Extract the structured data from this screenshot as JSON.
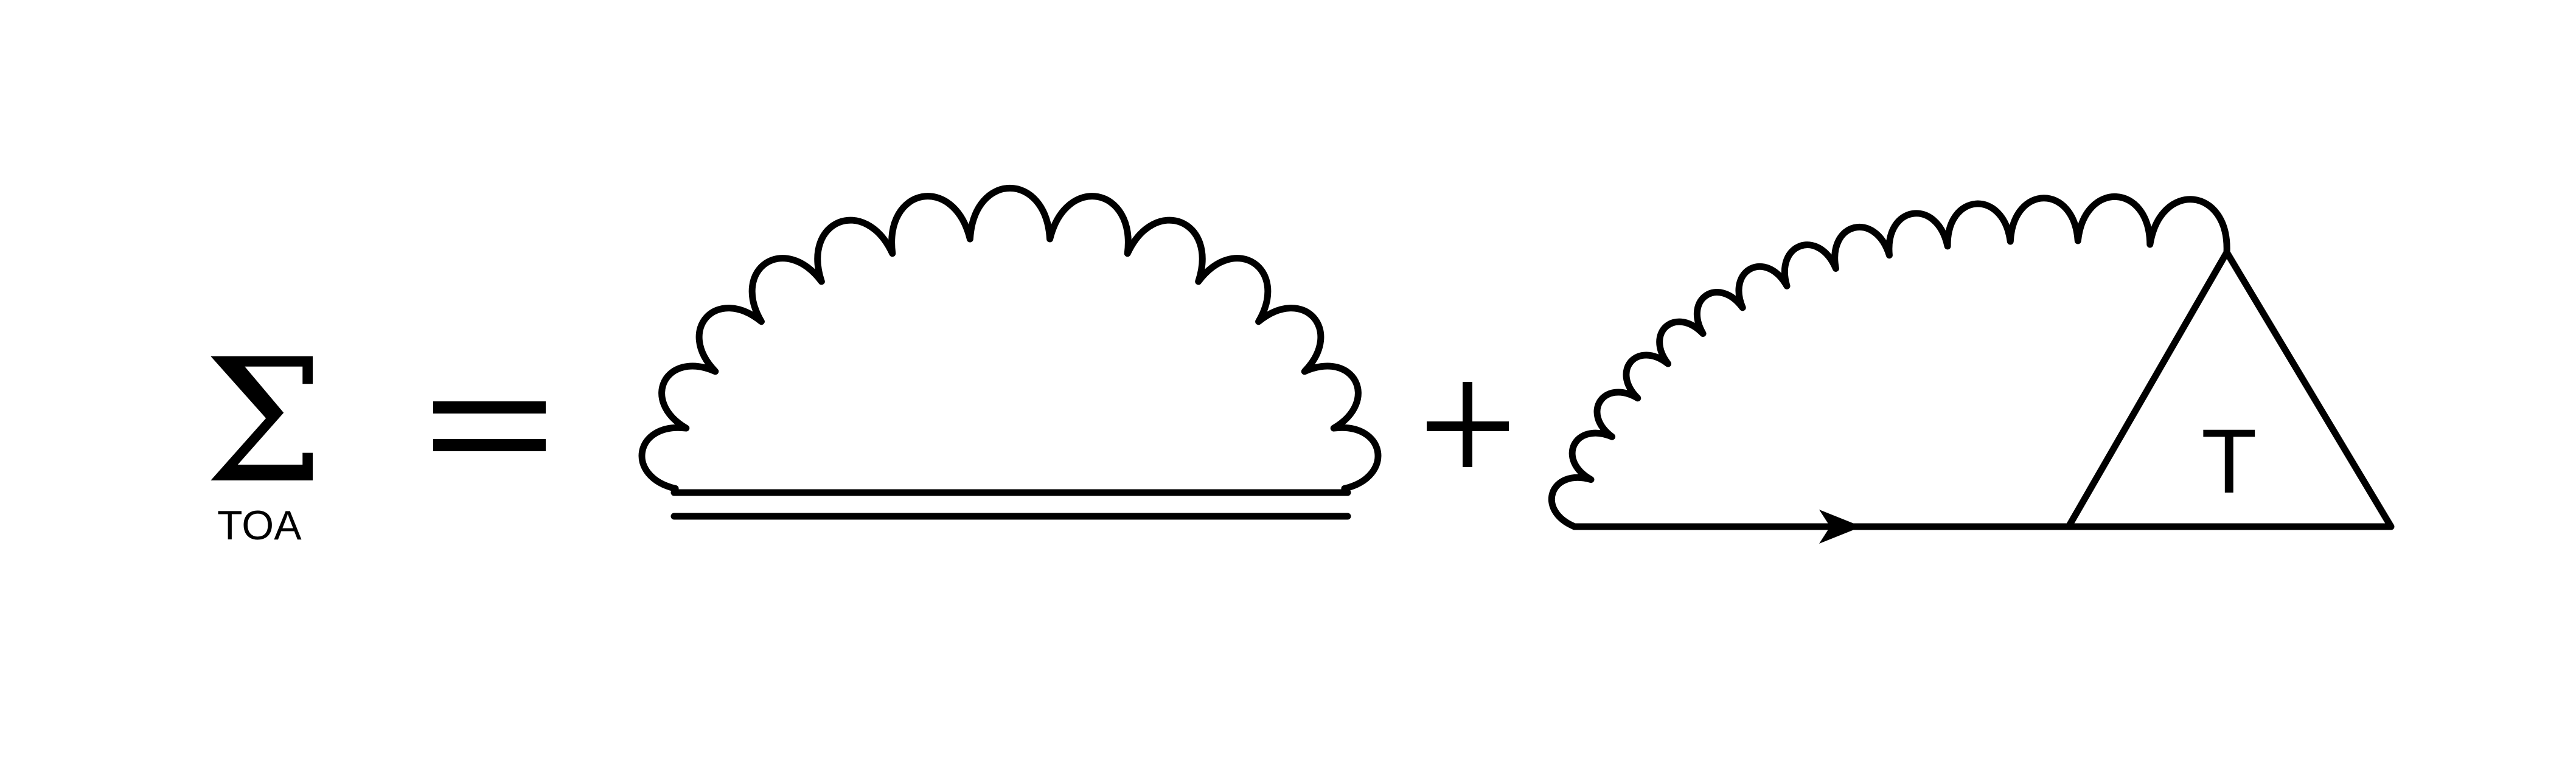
{
  "equation": {
    "lhs_symbol": "Σ",
    "lhs_subscript": "TOA",
    "equals_sign": "=",
    "plus_sign": "+",
    "vertex_label": "T"
  },
  "colors": {
    "ink": "#000000",
    "background": "#ffffff"
  }
}
